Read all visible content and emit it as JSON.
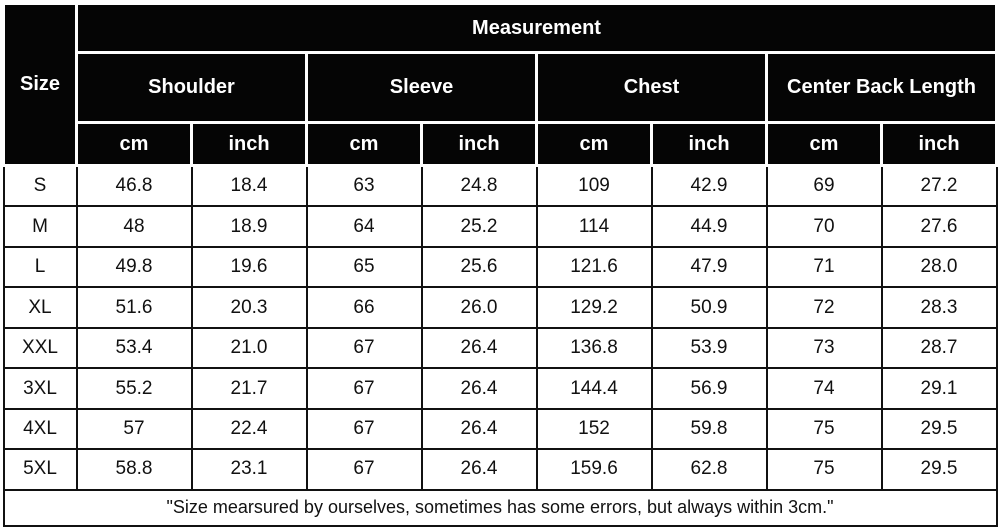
{
  "table": {
    "size_header": "Size",
    "measurement_header": "Measurement",
    "groups": [
      {
        "label": "Shoulder"
      },
      {
        "label": "Sleeve"
      },
      {
        "label": "Chest"
      },
      {
        "label": "Center Back Length"
      }
    ],
    "units": [
      "cm",
      "inch",
      "cm",
      "inch",
      "cm",
      "inch",
      "cm",
      "inch"
    ],
    "rows": [
      {
        "size": "S",
        "values": [
          "46.8",
          "18.4",
          "63",
          "24.8",
          "109",
          "42.9",
          "69",
          "27.2"
        ]
      },
      {
        "size": "M",
        "values": [
          "48",
          "18.9",
          "64",
          "25.2",
          "114",
          "44.9",
          "70",
          "27.6"
        ]
      },
      {
        "size": "L",
        "values": [
          "49.8",
          "19.6",
          "65",
          "25.6",
          "121.6",
          "47.9",
          "71",
          "28.0"
        ]
      },
      {
        "size": "XL",
        "values": [
          "51.6",
          "20.3",
          "66",
          "26.0",
          "129.2",
          "50.9",
          "72",
          "28.3"
        ]
      },
      {
        "size": "XXL",
        "values": [
          "53.4",
          "21.0",
          "67",
          "26.4",
          "136.8",
          "53.9",
          "73",
          "28.7"
        ]
      },
      {
        "size": "3XL",
        "values": [
          "55.2",
          "21.7",
          "67",
          "26.4",
          "144.4",
          "56.9",
          "74",
          "29.1"
        ]
      },
      {
        "size": "4XL",
        "values": [
          "57",
          "22.4",
          "67",
          "26.4",
          "152",
          "59.8",
          "75",
          "29.5"
        ]
      },
      {
        "size": "5XL",
        "values": [
          "58.8",
          "23.1",
          "67",
          "26.4",
          "159.6",
          "62.8",
          "75",
          "29.5"
        ]
      }
    ],
    "footnote": "\"Size mearsured by ourselves, sometimes has some errors, but always within 3cm.\"",
    "colors": {
      "header_bg": "#050505",
      "header_text": "#ffffff",
      "header_grid": "#ffffff",
      "body_bg": "#ffffff",
      "body_text": "#111111",
      "body_grid": "#111111"
    }
  }
}
